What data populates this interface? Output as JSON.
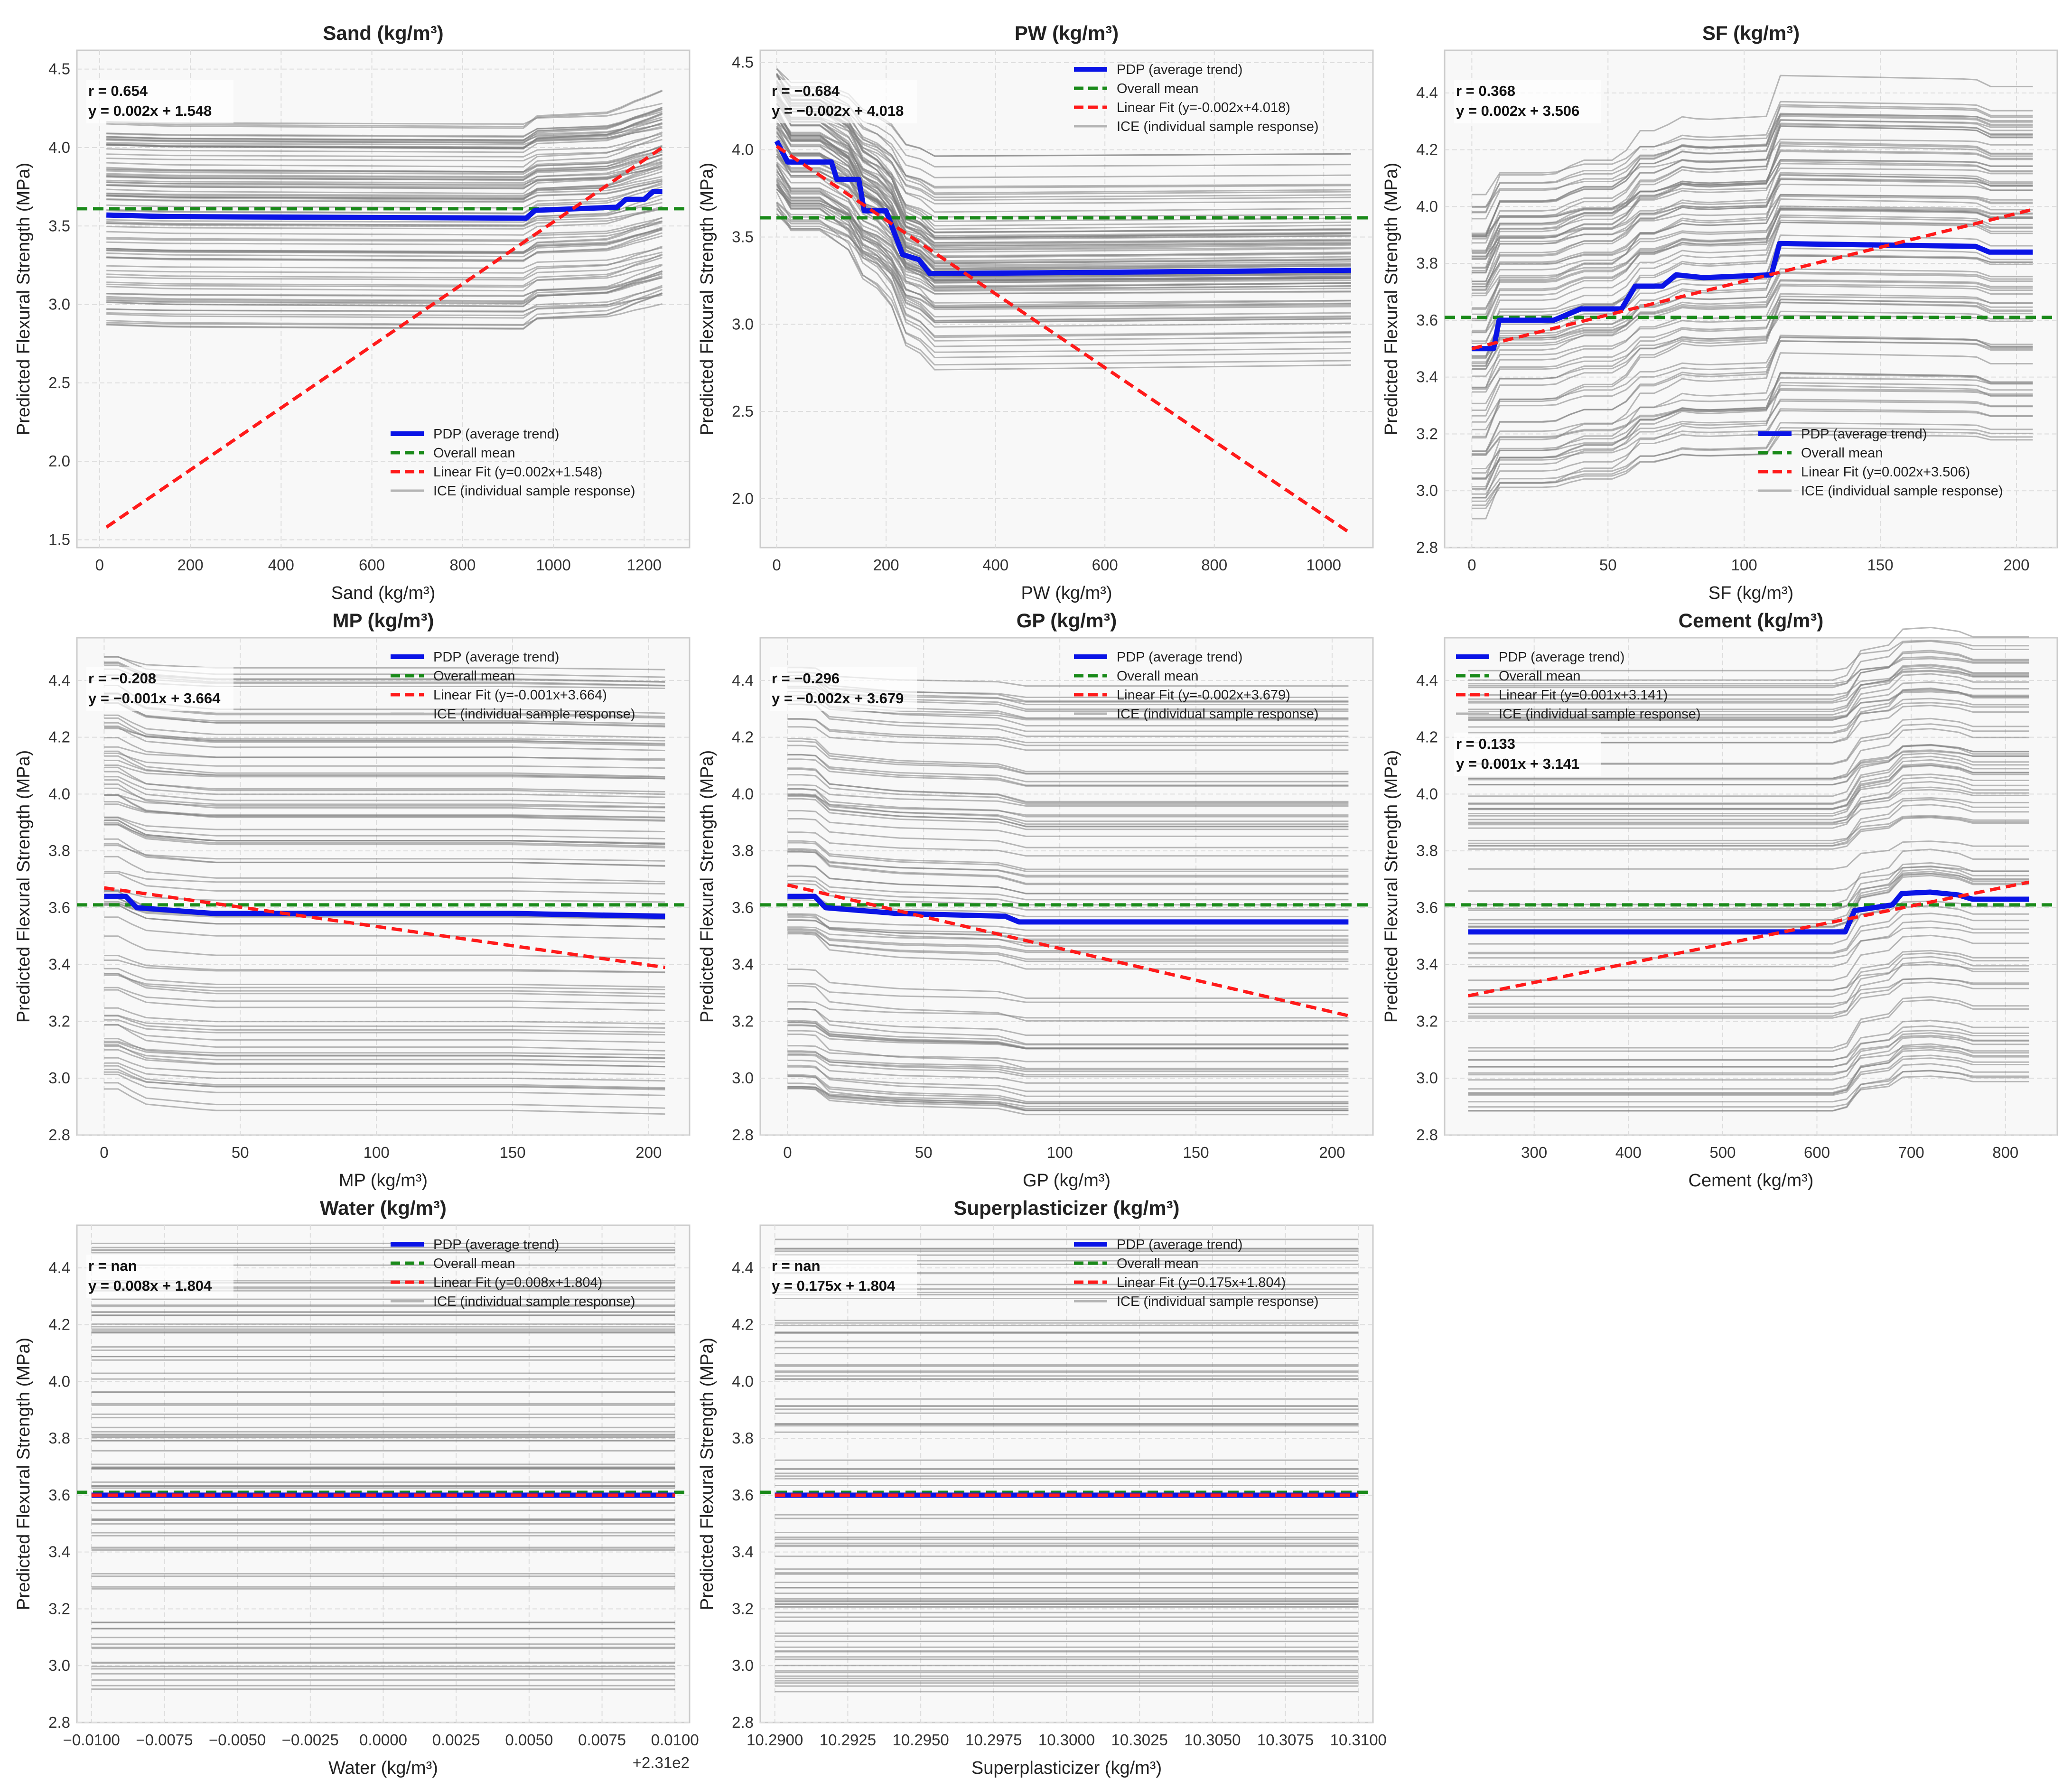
{
  "chart_data": [
    {
      "type": "line",
      "title": "Sand (kg/m³)",
      "xlabel": "Sand (kg/m³)",
      "ylabel": "Predicted Flexural Strength (MPa)",
      "xlim": [
        -50,
        1300
      ],
      "ylim": [
        1.45,
        4.62
      ],
      "xticks": [
        0,
        200,
        400,
        600,
        800,
        1000,
        1200
      ],
      "xtick_labels": [
        "0",
        "200",
        "400",
        "600",
        "800",
        "1000",
        "1200"
      ],
      "yticks": [
        1.5,
        2.0,
        2.5,
        3.0,
        3.5,
        4.0,
        4.5
      ],
      "ytick_labels": [
        "1.5",
        "2.0",
        "2.5",
        "3.0",
        "3.5",
        "4.0",
        "4.5"
      ],
      "x_offset_label": "",
      "pdp": [
        [
          15,
          3.57
        ],
        [
          150,
          3.56
        ],
        [
          940,
          3.55
        ],
        [
          960,
          3.6
        ],
        [
          1140,
          3.62
        ],
        [
          1160,
          3.67
        ],
        [
          1200,
          3.67
        ],
        [
          1220,
          3.72
        ],
        [
          1240,
          3.72
        ]
      ],
      "fit": [
        [
          15,
          1.58
        ],
        [
          1240,
          4.0
        ]
      ],
      "mean": 3.61,
      "ice_spread": [
        -0.7,
        0.6
      ],
      "annotation": [
        "r = 0.654",
        "y = 0.002x + 1.548"
      ],
      "legend_position": "bottom-right",
      "legend": [
        "PDP (average trend)",
        "Overall mean",
        "Linear Fit (y=0.002x+1.548)",
        "ICE (individual sample response)"
      ]
    },
    {
      "type": "line",
      "title": "PW (kg/m³)",
      "xlabel": "PW (kg/m³)",
      "ylabel": "Predicted Flexural Strength (MPa)",
      "xlim": [
        -30,
        1090
      ],
      "ylim": [
        1.72,
        4.57
      ],
      "xticks": [
        0,
        200,
        400,
        600,
        800,
        1000
      ],
      "xtick_labels": [
        "0",
        "200",
        "400",
        "600",
        "800",
        "1000"
      ],
      "yticks": [
        2.0,
        2.5,
        3.0,
        3.5,
        4.0,
        4.5
      ],
      "ytick_labels": [
        "2.0",
        "2.5",
        "3.0",
        "3.5",
        "4.0",
        "4.5"
      ],
      "x_offset_label": "",
      "pdp": [
        [
          0,
          4.05
        ],
        [
          20,
          3.93
        ],
        [
          100,
          3.93
        ],
        [
          110,
          3.83
        ],
        [
          150,
          3.83
        ],
        [
          160,
          3.65
        ],
        [
          200,
          3.65
        ],
        [
          230,
          3.4
        ],
        [
          260,
          3.37
        ],
        [
          280,
          3.29
        ],
        [
          680,
          3.3
        ],
        [
          1050,
          3.31
        ]
      ],
      "fit": [
        [
          0,
          4.02
        ],
        [
          1050,
          1.8
        ]
      ],
      "mean": 3.61,
      "ice_spread": [
        -0.42,
        0.42
      ],
      "annotation": [
        "r = −0.684",
        "y = −0.002x + 4.018"
      ],
      "legend_position": "top-right",
      "legend": [
        "PDP (average trend)",
        "Overall mean",
        "Linear Fit (y=-0.002x+4.018)",
        "ICE (individual sample response)"
      ]
    },
    {
      "type": "line",
      "title": "SF (kg/m³)",
      "xlabel": "SF (kg/m³)",
      "ylabel": "Predicted Flexural Strength (MPa)",
      "xlim": [
        -10,
        215
      ],
      "ylim": [
        2.8,
        4.55
      ],
      "xticks": [
        0,
        50,
        100,
        150,
        200
      ],
      "xtick_labels": [
        "0",
        "50",
        "100",
        "150",
        "200"
      ],
      "yticks": [
        2.8,
        3.0,
        3.2,
        3.4,
        3.6,
        3.8,
        4.0,
        4.2,
        4.4
      ],
      "ytick_labels": [
        "2.8",
        "3.0",
        "3.2",
        "3.4",
        "3.6",
        "3.8",
        "4.0",
        "4.2",
        "4.4"
      ],
      "x_offset_label": "",
      "pdp": [
        [
          0,
          3.5
        ],
        [
          8,
          3.5
        ],
        [
          10,
          3.6
        ],
        [
          30,
          3.6
        ],
        [
          40,
          3.64
        ],
        [
          55,
          3.64
        ],
        [
          60,
          3.72
        ],
        [
          70,
          3.72
        ],
        [
          75,
          3.76
        ],
        [
          85,
          3.75
        ],
        [
          110,
          3.76
        ],
        [
          113,
          3.87
        ],
        [
          185,
          3.86
        ],
        [
          190,
          3.84
        ],
        [
          206,
          3.84
        ]
      ],
      "fit": [
        [
          0,
          3.5
        ],
        [
          206,
          3.99
        ]
      ],
      "mean": 3.61,
      "ice_spread": [
        -0.6,
        0.55
      ],
      "annotation": [
        "r = 0.368",
        "y = 0.002x + 3.506"
      ],
      "legend_position": "bottom-right",
      "legend": [
        "PDP (average trend)",
        "Overall mean",
        "Linear Fit (y=0.002x+3.506)",
        "ICE (individual sample response)"
      ]
    },
    {
      "type": "line",
      "title": "MP (kg/m³)",
      "xlabel": "MP (kg/m³)",
      "ylabel": "Predicted Flexural Strength (MPa)",
      "xlim": [
        -10,
        215
      ],
      "ylim": [
        2.8,
        4.55
      ],
      "xticks": [
        0,
        50,
        100,
        150,
        200
      ],
      "xtick_labels": [
        "0",
        "50",
        "100",
        "150",
        "200"
      ],
      "yticks": [
        2.8,
        3.0,
        3.2,
        3.4,
        3.6,
        3.8,
        4.0,
        4.2,
        4.4
      ],
      "ytick_labels": [
        "2.8",
        "3.0",
        "3.2",
        "3.4",
        "3.6",
        "3.8",
        "4.0",
        "4.2",
        "4.4"
      ],
      "x_offset_label": "",
      "pdp": [
        [
          0,
          3.64
        ],
        [
          8,
          3.64
        ],
        [
          12,
          3.6
        ],
        [
          40,
          3.58
        ],
        [
          150,
          3.58
        ],
        [
          206,
          3.57
        ]
      ],
      "fit": [
        [
          0,
          3.67
        ],
        [
          206,
          3.39
        ]
      ],
      "mean": 3.61,
      "ice_spread": [
        -0.7,
        0.85
      ],
      "annotation": [
        "r = −0.208",
        "y = −0.001x + 3.664"
      ],
      "legend_position": "top-right",
      "legend": [
        "PDP (average trend)",
        "Overall mean",
        "Linear Fit (y=-0.001x+3.664)",
        "ICE (individual sample response)"
      ]
    },
    {
      "type": "line",
      "title": "GP (kg/m³)",
      "xlabel": "GP (kg/m³)",
      "ylabel": "Predicted Flexural Strength (MPa)",
      "xlim": [
        -10,
        215
      ],
      "ylim": [
        2.8,
        4.55
      ],
      "xticks": [
        0,
        50,
        100,
        150,
        200
      ],
      "xtick_labels": [
        "0",
        "50",
        "100",
        "150",
        "200"
      ],
      "yticks": [
        2.8,
        3.0,
        3.2,
        3.4,
        3.6,
        3.8,
        4.0,
        4.2,
        4.4
      ],
      "ytick_labels": [
        "2.8",
        "3.0",
        "3.2",
        "3.4",
        "3.6",
        "3.8",
        "4.0",
        "4.2",
        "4.4"
      ],
      "x_offset_label": "",
      "pdp": [
        [
          0,
          3.64
        ],
        [
          10,
          3.64
        ],
        [
          14,
          3.6
        ],
        [
          40,
          3.58
        ],
        [
          80,
          3.57
        ],
        [
          85,
          3.55
        ],
        [
          206,
          3.55
        ]
      ],
      "fit": [
        [
          0,
          3.68
        ],
        [
          206,
          3.22
        ]
      ],
      "mean": 3.61,
      "ice_spread": [
        -0.68,
        0.85
      ],
      "annotation": [
        "r = −0.296",
        "y = −0.002x + 3.679"
      ],
      "legend_position": "top-right",
      "legend": [
        "PDP (average trend)",
        "Overall mean",
        "Linear Fit (y=-0.002x+3.679)",
        "ICE (individual sample response)"
      ]
    },
    {
      "type": "line",
      "title": "Cement (kg/m³)",
      "xlabel": "Cement (kg/m³)",
      "ylabel": "Predicted Flexural Strength (MPa)",
      "xlim": [
        205,
        855
      ],
      "ylim": [
        2.8,
        4.55
      ],
      "xticks": [
        300,
        400,
        500,
        600,
        700,
        800
      ],
      "xtick_labels": [
        "300",
        "400",
        "500",
        "600",
        "700",
        "800"
      ],
      "yticks": [
        2.8,
        3.0,
        3.2,
        3.4,
        3.6,
        3.8,
        4.0,
        4.2,
        4.4
      ],
      "ytick_labels": [
        "2.8",
        "3.0",
        "3.2",
        "3.4",
        "3.6",
        "3.8",
        "4.0",
        "4.2",
        "4.4"
      ],
      "x_offset_label": "",
      "pdp": [
        [
          230,
          3.515
        ],
        [
          630,
          3.515
        ],
        [
          640,
          3.59
        ],
        [
          680,
          3.61
        ],
        [
          690,
          3.65
        ],
        [
          720,
          3.655
        ],
        [
          750,
          3.645
        ],
        [
          765,
          3.63
        ],
        [
          825,
          3.63
        ]
      ],
      "fit": [
        [
          230,
          3.29
        ],
        [
          825,
          3.69
        ]
      ],
      "mean": 3.61,
      "ice_spread": [
        -0.63,
        0.95
      ],
      "annotation": [
        "r = 0.133",
        "y = 0.001x + 3.141"
      ],
      "legend_position": "top-left",
      "legend": [
        "PDP (average trend)",
        "Overall mean",
        "Linear Fit (y=0.001x+3.141)",
        "ICE (individual sample response)"
      ]
    },
    {
      "type": "line",
      "title": "Water (kg/m³)",
      "xlabel": "Water (kg/m³)",
      "ylabel": "Predicted Flexural Strength (MPa)",
      "xlim": [
        -0.0105,
        0.0105
      ],
      "ylim": [
        2.8,
        4.55
      ],
      "xticks": [
        -0.01,
        -0.0075,
        -0.005,
        -0.0025,
        0,
        0.0025,
        0.005,
        0.0075,
        0.01
      ],
      "xtick_labels": [
        "−0.0100",
        "−0.0075",
        "−0.0050",
        "−0.0025",
        "0.0000",
        "0.0025",
        "0.0050",
        "0.0075",
        "0.0100"
      ],
      "yticks": [
        2.8,
        3.0,
        3.2,
        3.4,
        3.6,
        3.8,
        4.0,
        4.2,
        4.4
      ],
      "ytick_labels": [
        "2.8",
        "3.0",
        "3.2",
        "3.4",
        "3.6",
        "3.8",
        "4.0",
        "4.2",
        "4.4"
      ],
      "x_offset_label": "+2.31e2",
      "pdp": [
        [
          -0.01,
          3.6
        ],
        [
          0.01,
          3.6
        ]
      ],
      "fit": [
        [
          -0.01,
          3.6
        ],
        [
          0.01,
          3.6
        ]
      ],
      "mean": 3.61,
      "ice_spread": [
        -0.7,
        0.9
      ],
      "annotation": [
        "r = nan",
        "y = 0.008x + 1.804"
      ],
      "legend_position": "top-right",
      "legend": [
        "PDP (average trend)",
        "Overall mean",
        "Linear Fit (y=0.008x+1.804)",
        "ICE (individual sample response)"
      ]
    },
    {
      "type": "line",
      "title": "Superplasticizer (kg/m³)",
      "xlabel": "Superplasticizer (kg/m³)",
      "ylabel": "Predicted Flexural Strength (MPa)",
      "xlim": [
        10.2895,
        10.3105
      ],
      "ylim": [
        2.8,
        4.55
      ],
      "xticks": [
        10.29,
        10.2925,
        10.295,
        10.2975,
        10.3,
        10.3025,
        10.305,
        10.3075,
        10.31
      ],
      "xtick_labels": [
        "10.2900",
        "10.2925",
        "10.2950",
        "10.2975",
        "10.3000",
        "10.3025",
        "10.3050",
        "10.3075",
        "10.3100"
      ],
      "yticks": [
        2.8,
        3.0,
        3.2,
        3.4,
        3.6,
        3.8,
        4.0,
        4.2,
        4.4
      ],
      "ytick_labels": [
        "2.8",
        "3.0",
        "3.2",
        "3.4",
        "3.6",
        "3.8",
        "4.0",
        "4.2",
        "4.4"
      ],
      "x_offset_label": "",
      "pdp": [
        [
          10.29,
          3.6
        ],
        [
          10.31,
          3.6
        ]
      ],
      "fit": [
        [
          10.29,
          3.6
        ],
        [
          10.31,
          3.6
        ]
      ],
      "mean": 3.61,
      "ice_spread": [
        -0.7,
        0.9
      ],
      "annotation": [
        "r = nan",
        "y = 0.175x + 1.804"
      ],
      "legend_position": "top-right",
      "legend": [
        "PDP (average trend)",
        "Overall mean",
        "Linear Fit (y=0.175x+1.804)",
        "ICE (individual sample response)"
      ]
    }
  ],
  "colors": {
    "pdp": "#0a14e6",
    "mean": "#1a8a1a",
    "fit": "#ff1a1a",
    "ice": "#808080",
    "panel_bg": "#f8f8f8",
    "grid": "#dddddd"
  }
}
